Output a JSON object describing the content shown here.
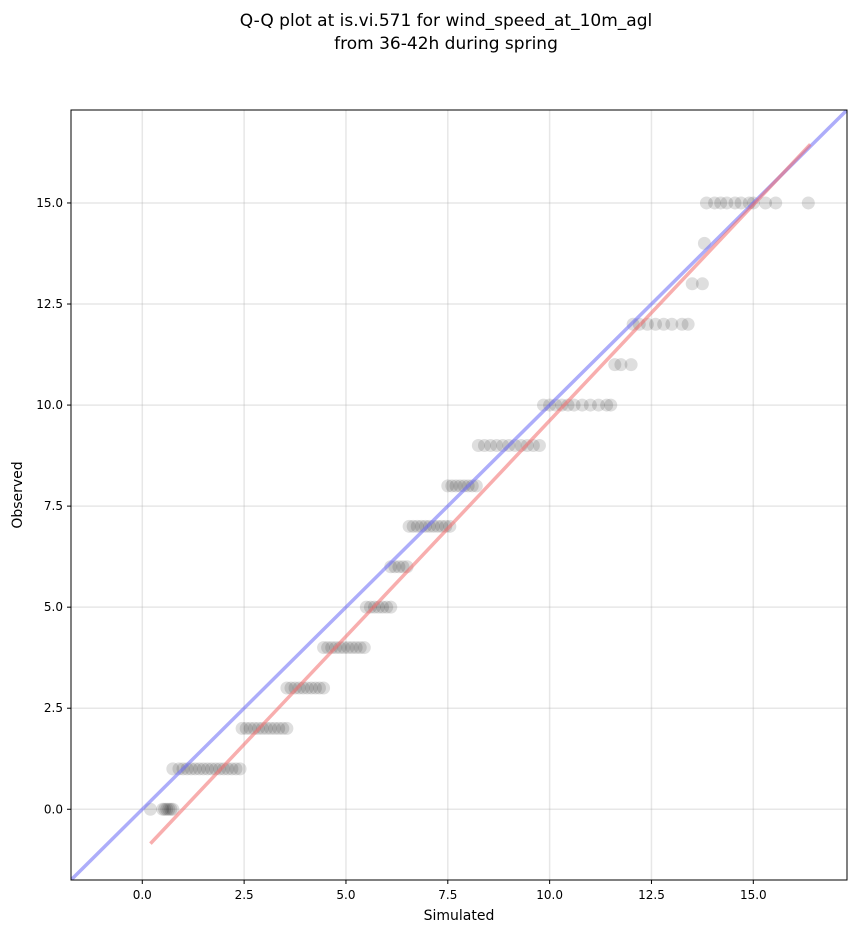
{
  "chart_data": {
    "type": "scatter",
    "title_lines": [
      "Q-Q plot at is.vi.571 for wind_speed_at_10m_agl",
      "from 36-42h during spring"
    ],
    "xlabel": "Simulated",
    "ylabel": "Observed",
    "xlim": [
      -1.75,
      17.3
    ],
    "ylim": [
      -1.75,
      17.3
    ],
    "x_ticks": [
      0.0,
      2.5,
      5.0,
      7.5,
      10.0,
      12.5,
      15.0
    ],
    "x_tick_labels": [
      "0.0",
      "2.5",
      "5.0",
      "7.5",
      "10.0",
      "12.5",
      "15.0"
    ],
    "y_ticks": [
      0.0,
      2.5,
      5.0,
      7.5,
      10.0,
      12.5,
      15.0
    ],
    "y_tick_labels": [
      "0.0",
      "2.5",
      "5.0",
      "7.5",
      "10.0",
      "12.5",
      "15.0"
    ],
    "grid": true,
    "point_color": "#000000",
    "point_opacity": 0.13,
    "lines": [
      {
        "color": "#6a6af5",
        "opacity": 0.55,
        "x": [
          -1.75,
          17.3
        ],
        "y": [
          -1.75,
          17.3
        ]
      },
      {
        "color": "#f26b6b",
        "opacity": 0.55,
        "x": [
          0.2,
          16.4
        ],
        "y": [
          -0.85,
          16.45
        ]
      }
    ],
    "series": [
      {
        "values": [
          [
            0.2,
            0
          ],
          [
            0.5,
            0
          ],
          [
            0.55,
            0
          ],
          [
            0.6,
            0
          ],
          [
            0.65,
            0
          ],
          [
            0.7,
            0
          ],
          [
            0.75,
            0
          ],
          [
            0.75,
            1
          ],
          [
            0.9,
            1
          ],
          [
            1.0,
            1
          ],
          [
            1.1,
            1
          ],
          [
            1.2,
            1
          ],
          [
            1.3,
            1
          ],
          [
            1.4,
            1
          ],
          [
            1.5,
            1
          ],
          [
            1.6,
            1
          ],
          [
            1.7,
            1
          ],
          [
            1.8,
            1
          ],
          [
            1.9,
            1
          ],
          [
            2.0,
            1
          ],
          [
            2.1,
            1
          ],
          [
            2.2,
            1
          ],
          [
            2.3,
            1
          ],
          [
            2.4,
            1
          ],
          [
            2.45,
            2
          ],
          [
            2.55,
            2
          ],
          [
            2.65,
            2
          ],
          [
            2.75,
            2
          ],
          [
            2.85,
            2
          ],
          [
            2.95,
            2
          ],
          [
            3.05,
            2
          ],
          [
            3.15,
            2
          ],
          [
            3.25,
            2
          ],
          [
            3.35,
            2
          ],
          [
            3.45,
            2
          ],
          [
            3.55,
            2
          ],
          [
            3.55,
            3
          ],
          [
            3.65,
            3
          ],
          [
            3.75,
            3
          ],
          [
            3.85,
            3
          ],
          [
            3.95,
            3
          ],
          [
            4.05,
            3
          ],
          [
            4.15,
            3
          ],
          [
            4.25,
            3
          ],
          [
            4.35,
            3
          ],
          [
            4.45,
            3
          ],
          [
            4.45,
            4
          ],
          [
            4.55,
            4
          ],
          [
            4.65,
            4
          ],
          [
            4.75,
            4
          ],
          [
            4.85,
            4
          ],
          [
            4.95,
            4
          ],
          [
            5.05,
            4
          ],
          [
            5.15,
            4
          ],
          [
            5.25,
            4
          ],
          [
            5.35,
            4
          ],
          [
            5.45,
            4
          ],
          [
            5.5,
            5
          ],
          [
            5.6,
            5
          ],
          [
            5.7,
            5
          ],
          [
            5.8,
            5
          ],
          [
            5.9,
            5
          ],
          [
            6.0,
            5
          ],
          [
            6.1,
            5
          ],
          [
            6.1,
            6
          ],
          [
            6.2,
            6
          ],
          [
            6.3,
            6
          ],
          [
            6.4,
            6
          ],
          [
            6.5,
            6
          ],
          [
            6.55,
            7
          ],
          [
            6.65,
            7
          ],
          [
            6.75,
            7
          ],
          [
            6.85,
            7
          ],
          [
            6.95,
            7
          ],
          [
            7.05,
            7
          ],
          [
            7.15,
            7
          ],
          [
            7.25,
            7
          ],
          [
            7.35,
            7
          ],
          [
            7.45,
            7
          ],
          [
            7.55,
            7
          ],
          [
            7.5,
            8
          ],
          [
            7.6,
            8
          ],
          [
            7.7,
            8
          ],
          [
            7.8,
            8
          ],
          [
            7.9,
            8
          ],
          [
            8.0,
            8
          ],
          [
            8.1,
            8
          ],
          [
            8.2,
            8
          ],
          [
            8.25,
            9
          ],
          [
            8.4,
            9
          ],
          [
            8.55,
            9
          ],
          [
            8.7,
            9
          ],
          [
            8.85,
            9
          ],
          [
            9.0,
            9
          ],
          [
            9.15,
            9
          ],
          [
            9.3,
            9
          ],
          [
            9.45,
            9
          ],
          [
            9.6,
            9
          ],
          [
            9.75,
            9
          ],
          [
            9.85,
            10
          ],
          [
            10.0,
            10
          ],
          [
            10.15,
            10
          ],
          [
            10.3,
            10
          ],
          [
            10.45,
            10
          ],
          [
            10.6,
            10
          ],
          [
            10.8,
            10
          ],
          [
            11.0,
            10
          ],
          [
            11.2,
            10
          ],
          [
            11.4,
            10
          ],
          [
            11.5,
            10
          ],
          [
            11.6,
            11
          ],
          [
            11.75,
            11
          ],
          [
            12.0,
            11
          ],
          [
            12.05,
            12
          ],
          [
            12.2,
            12
          ],
          [
            12.4,
            12
          ],
          [
            12.6,
            12
          ],
          [
            12.8,
            12
          ],
          [
            13.0,
            12
          ],
          [
            13.25,
            12
          ],
          [
            13.4,
            12
          ],
          [
            13.5,
            13
          ],
          [
            13.75,
            13
          ],
          [
            13.8,
            14
          ],
          [
            13.85,
            15
          ],
          [
            14.05,
            15
          ],
          [
            14.2,
            15
          ],
          [
            14.35,
            15
          ],
          [
            14.55,
            15
          ],
          [
            14.7,
            15
          ],
          [
            14.9,
            15
          ],
          [
            15.0,
            15
          ],
          [
            15.3,
            15
          ],
          [
            15.55,
            15
          ],
          [
            16.35,
            15
          ]
        ]
      }
    ]
  }
}
